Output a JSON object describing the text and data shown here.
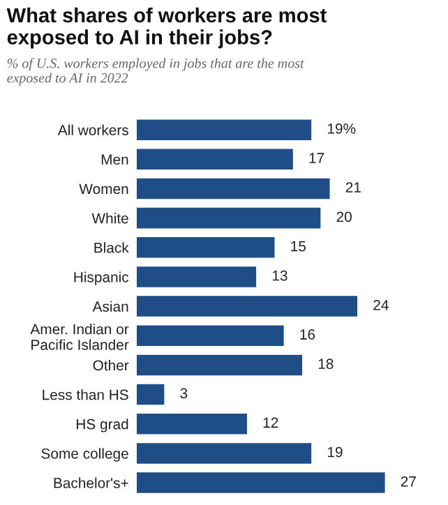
{
  "chart_data": {
    "type": "bar",
    "orientation": "horizontal",
    "title": "What shares of workers are most\nexposed to AI in their jobs?",
    "subtitle": "% of U.S. workers employed in jobs that are the most\nexposed to AI in 2022",
    "categories": [
      "All workers",
      "Men",
      "Women",
      "White",
      "Black",
      "Hispanic",
      "Asian",
      "Amer. Indian or\nPacific Islander",
      "Other",
      "Less than HS",
      "HS grad",
      "Some college",
      "Bachelor's+"
    ],
    "values": [
      19,
      17,
      21,
      20,
      15,
      13,
      24,
      16,
      18,
      3,
      12,
      19,
      27
    ],
    "value_labels": [
      "19%",
      "17",
      "21",
      "20",
      "15",
      "13",
      "24",
      "16",
      "18",
      "3",
      "12",
      "19",
      "27"
    ],
    "color": "#1f4e87",
    "grid": false,
    "legend": false
  }
}
